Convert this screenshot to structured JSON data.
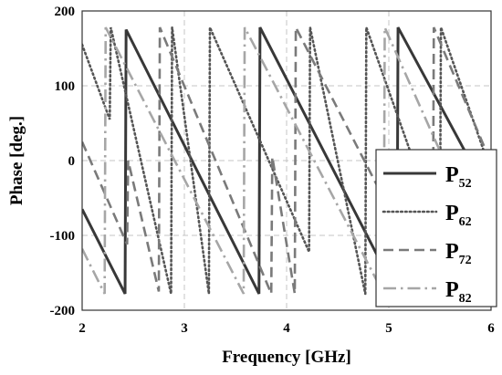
{
  "chart_data": {
    "type": "line",
    "xlabel": "Frequency [GHz]",
    "ylabel": "Phase [deg.]",
    "xlim": [
      2,
      6
    ],
    "ylim": [
      -200,
      200
    ],
    "xticks": [
      "2",
      "3",
      "4",
      "5",
      "6"
    ],
    "yticks": [
      "200",
      "100",
      "0",
      "-100",
      "-200"
    ],
    "grid": true,
    "legend_position": "right",
    "series": [
      {
        "name": "P52",
        "label_main": "P",
        "label_sub": "52",
        "color": "#383838",
        "style": "solid",
        "points": [
          [
            2.0,
            -65
          ],
          [
            2.42,
            -178
          ],
          [
            2.43,
            175
          ],
          [
            3.73,
            -178
          ],
          [
            3.74,
            178
          ],
          [
            5.08,
            -178
          ],
          [
            5.09,
            178
          ],
          [
            6.0,
            -52
          ]
        ]
      },
      {
        "name": "P62",
        "label_main": "P",
        "label_sub": "62",
        "color": "#555555",
        "style": "dotted",
        "points": [
          [
            2.0,
            155
          ],
          [
            2.27,
            55
          ],
          [
            2.28,
            178
          ],
          [
            2.87,
            -178
          ],
          [
            2.88,
            178
          ],
          [
            3.24,
            -178
          ],
          [
            3.25,
            178
          ],
          [
            4.22,
            -122
          ],
          [
            4.23,
            178
          ],
          [
            4.77,
            -178
          ],
          [
            4.78,
            178
          ],
          [
            5.5,
            -100
          ],
          [
            5.51,
            178
          ],
          [
            6.0,
            -15
          ]
        ]
      },
      {
        "name": "P72",
        "label_main": "P",
        "label_sub": "72",
        "color": "#7a7a7a",
        "style": "dashed",
        "points": [
          [
            2.0,
            25
          ],
          [
            2.44,
            -112
          ],
          [
            2.45,
            0
          ],
          [
            2.75,
            -175
          ],
          [
            2.76,
            178
          ],
          [
            3.85,
            -178
          ],
          [
            3.86,
            5
          ],
          [
            4.08,
            -178
          ],
          [
            4.09,
            178
          ],
          [
            5.43,
            -178
          ],
          [
            5.44,
            178
          ],
          [
            6.0,
            -3
          ]
        ]
      },
      {
        "name": "P82",
        "label_main": "P",
        "label_sub": "82",
        "color": "#a6a6a6",
        "style": "dashdot",
        "points": [
          [
            2.0,
            -118
          ],
          [
            2.22,
            -178
          ],
          [
            2.23,
            178
          ],
          [
            3.58,
            -178
          ],
          [
            3.59,
            178
          ],
          [
            4.95,
            -178
          ],
          [
            4.96,
            178
          ],
          [
            6.0,
            -140
          ]
        ]
      }
    ]
  }
}
